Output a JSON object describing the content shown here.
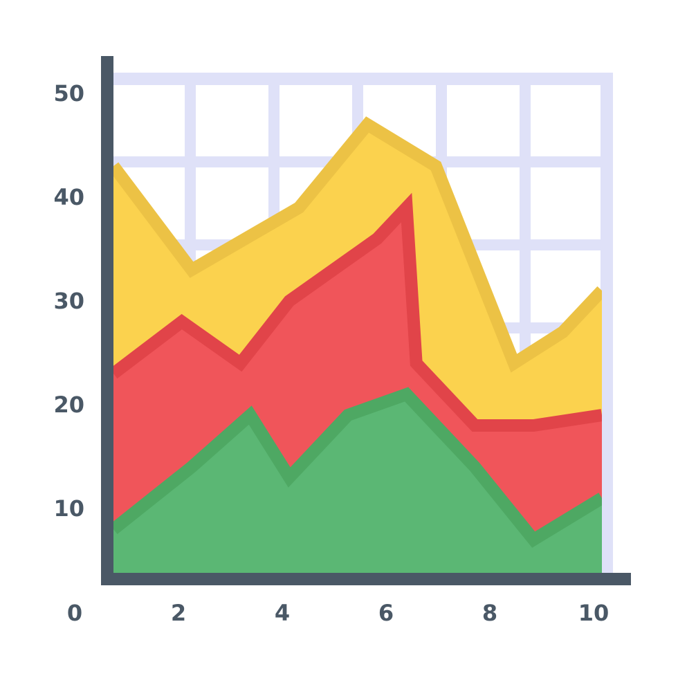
{
  "chart_data": {
    "type": "area",
    "stacked": false,
    "grid": true,
    "xlim": [
      0,
      10
    ],
    "ylim": [
      0,
      50
    ],
    "x_ticks": [
      "0",
      "2",
      "4",
      "6",
      "8",
      "10"
    ],
    "y_ticks": [
      "10",
      "20",
      "30",
      "40",
      "50"
    ],
    "series": [
      {
        "color": "#fbd24e",
        "edge_color": "#ecc245",
        "x": [
          0,
          1.6,
          3.8,
          5.2,
          6.6,
          8.2,
          9.2,
          10
        ],
        "y": [
          43,
          33,
          39,
          47,
          43,
          24,
          27,
          31
        ]
      },
      {
        "color": "#f0555a",
        "edge_color": "#e14449",
        "x": [
          0,
          1.4,
          2.6,
          3.6,
          5.4,
          6,
          6.2,
          7.4,
          8.6,
          10
        ],
        "y": [
          23,
          28,
          24,
          30,
          36,
          39,
          24,
          18,
          18,
          19
        ]
      },
      {
        "color": "#5bb774",
        "edge_color": "#4ea863",
        "x": [
          0,
          1.6,
          2.8,
          3.6,
          4.8,
          6,
          7.4,
          8.6,
          10
        ],
        "y": [
          8,
          14,
          19,
          13,
          19,
          21,
          14,
          7,
          11
        ]
      }
    ],
    "colors": {
      "axis": "#4a5866",
      "grid": "#dfe1f8",
      "label": "#4a5866"
    }
  }
}
